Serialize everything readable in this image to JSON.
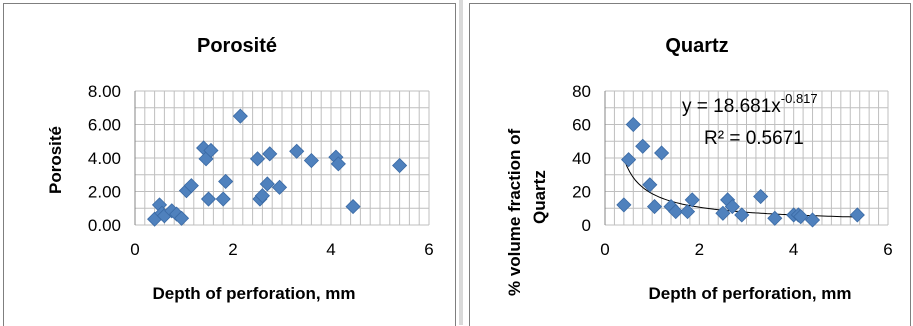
{
  "chart_data": [
    {
      "type": "scatter",
      "title": "Porosité",
      "xlabel": "Depth of perforation, mm",
      "ylabel": "Porosité",
      "xlim": [
        0,
        6
      ],
      "ylim": [
        0,
        8
      ],
      "x_ticks": [
        "0",
        "2",
        "4",
        "6"
      ],
      "y_ticks": [
        "0.00",
        "2.00",
        "4.00",
        "6.00",
        "8.00"
      ],
      "grid": "major and minor",
      "marker_color": "#4f81bd",
      "series": [
        {
          "x": [
            0.4,
            0.5,
            0.55,
            0.6,
            0.75,
            0.85,
            0.95,
            1.05,
            1.15,
            1.4,
            1.45,
            1.5,
            1.55,
            1.8,
            1.85,
            2.15,
            2.5,
            2.55,
            2.6,
            2.7,
            2.75,
            2.95,
            3.3,
            3.6,
            4.1,
            4.15,
            4.45,
            5.4
          ],
          "y": [
            0.35,
            1.2,
            0.7,
            0.55,
            0.85,
            0.65,
            0.4,
            2.05,
            2.35,
            4.6,
            3.95,
            1.55,
            4.45,
            1.55,
            2.6,
            6.5,
            3.95,
            1.55,
            1.75,
            2.45,
            4.25,
            2.25,
            4.4,
            3.85,
            4.05,
            3.65,
            1.1,
            3.55
          ]
        }
      ]
    },
    {
      "type": "scatter",
      "title": "Quartz",
      "xlabel": "Depth of perforation, mm",
      "ylabel": "% volume fraction of Quartz",
      "xlim": [
        0,
        6
      ],
      "ylim": [
        0,
        80
      ],
      "x_ticks": [
        "0",
        "2",
        "4",
        "6"
      ],
      "y_ticks": [
        "0",
        "20",
        "40",
        "60",
        "80"
      ],
      "grid": "major and minor",
      "marker_color": "#4f81bd",
      "trendline": {
        "type": "power",
        "a": 18.681,
        "b": -0.817
      },
      "equation_text": "y = 18.681x",
      "equation_exponent": "-0.817",
      "r2_text": "R² = 0.5671",
      "series": [
        {
          "x": [
            0.4,
            0.5,
            0.6,
            0.8,
            0.95,
            1.05,
            1.2,
            1.4,
            1.5,
            1.75,
            1.85,
            2.5,
            2.6,
            2.7,
            2.9,
            3.3,
            3.6,
            4.0,
            4.1,
            4.15,
            4.4,
            5.35
          ],
          "y": [
            12,
            39,
            60,
            47,
            24,
            11,
            43,
            11,
            8,
            8,
            15,
            7,
            15,
            11,
            6,
            17,
            4,
            6,
            6,
            5,
            3,
            6
          ]
        }
      ]
    }
  ]
}
